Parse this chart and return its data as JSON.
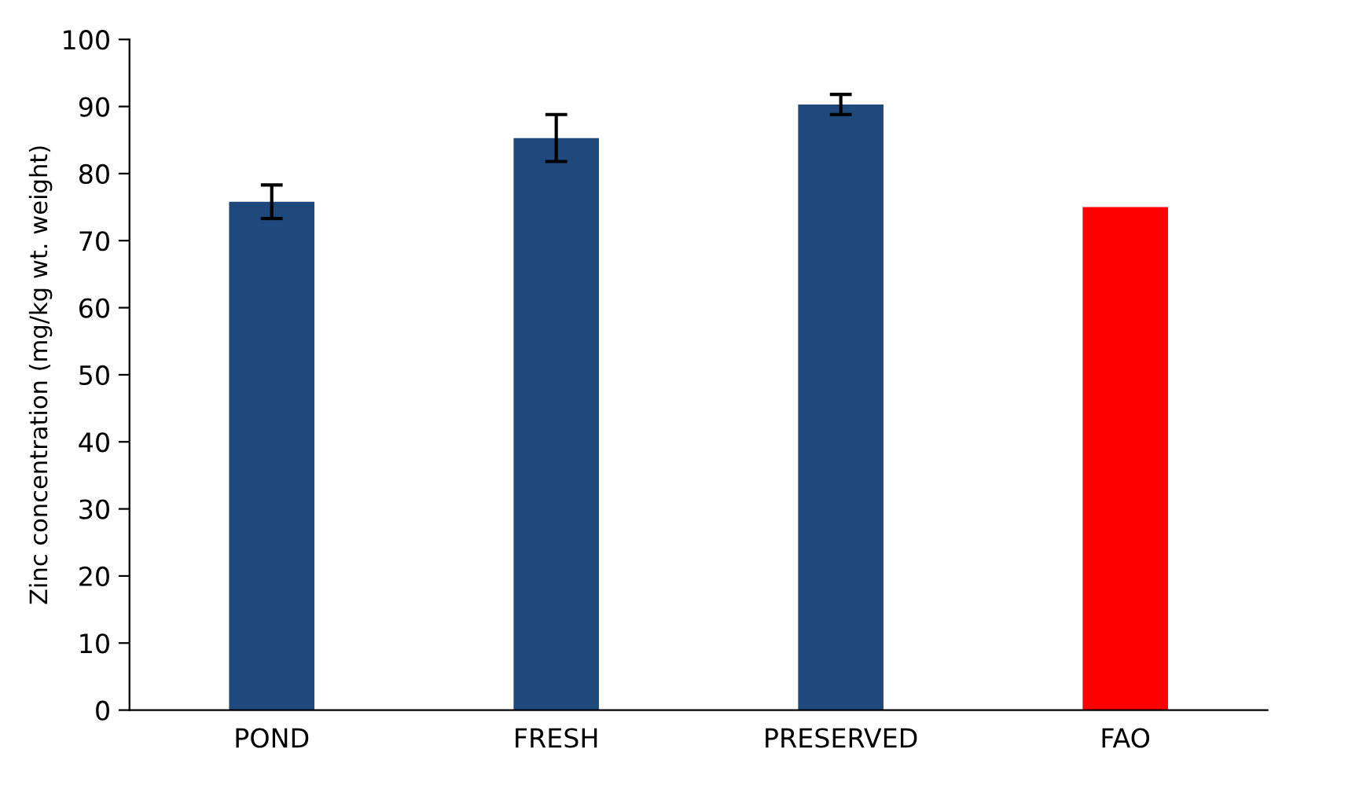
{
  "chart_data": {
    "type": "bar",
    "ylabel": "Zinc concentration (mg/kg wt. weight)",
    "categories": [
      "POND",
      "FRESH",
      "PRESERVED",
      "FAO"
    ],
    "values": [
      75.8,
      85.3,
      90.3,
      75
    ],
    "colors": [
      "#1f497d",
      "#1f497d",
      "#1f497d",
      "#ff0000"
    ],
    "errors": [
      2.5,
      3.5,
      1.5,
      null
    ],
    "ylim": [
      0,
      100
    ],
    "yticks": [
      0,
      10,
      20,
      30,
      40,
      50,
      60,
      70,
      80,
      90,
      100
    ],
    "grid": false
  }
}
